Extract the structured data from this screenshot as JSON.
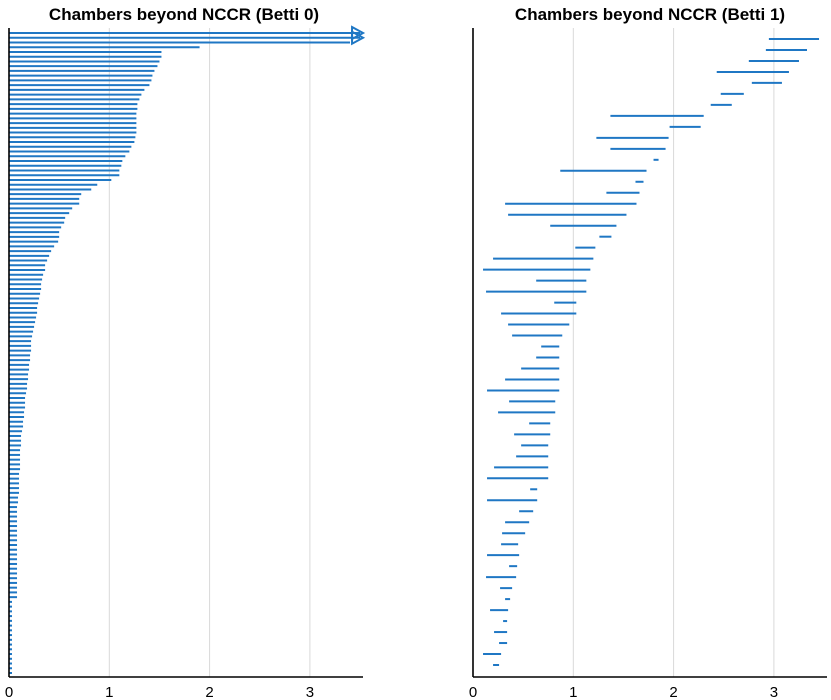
{
  "chart_data": [
    {
      "type": "barcode",
      "title": "Chambers beyond NCCR (Betti 0)",
      "xlim": [
        0,
        3.5
      ],
      "xticks": [
        0,
        1,
        2,
        3
      ],
      "grid": "vertical",
      "color": "#1f77c4",
      "infinite_arrows": 2,
      "intervals": [
        [
          0,
          3.5
        ],
        [
          0,
          3.5
        ],
        [
          0,
          3.4
        ],
        [
          0,
          1.9
        ],
        [
          0,
          1.52
        ],
        [
          0,
          1.52
        ],
        [
          0,
          1.5
        ],
        [
          0,
          1.48
        ],
        [
          0,
          1.45
        ],
        [
          0,
          1.43
        ],
        [
          0,
          1.42
        ],
        [
          0,
          1.4
        ],
        [
          0,
          1.35
        ],
        [
          0,
          1.32
        ],
        [
          0,
          1.3
        ],
        [
          0,
          1.28
        ],
        [
          0,
          1.28
        ],
        [
          0,
          1.27
        ],
        [
          0,
          1.27
        ],
        [
          0,
          1.27
        ],
        [
          0,
          1.27
        ],
        [
          0,
          1.27
        ],
        [
          0,
          1.26
        ],
        [
          0,
          1.25
        ],
        [
          0,
          1.22
        ],
        [
          0,
          1.2
        ],
        [
          0,
          1.16
        ],
        [
          0,
          1.13
        ],
        [
          0,
          1.12
        ],
        [
          0,
          1.1
        ],
        [
          0,
          1.1
        ],
        [
          0,
          1.02
        ],
        [
          0,
          0.88
        ],
        [
          0,
          0.82
        ],
        [
          0,
          0.72
        ],
        [
          0,
          0.7
        ],
        [
          0,
          0.7
        ],
        [
          0,
          0.63
        ],
        [
          0,
          0.6
        ],
        [
          0,
          0.56
        ],
        [
          0,
          0.55
        ],
        [
          0,
          0.52
        ],
        [
          0,
          0.5
        ],
        [
          0,
          0.5
        ],
        [
          0,
          0.49
        ],
        [
          0,
          0.45
        ],
        [
          0,
          0.42
        ],
        [
          0,
          0.4
        ],
        [
          0,
          0.38
        ],
        [
          0,
          0.36
        ],
        [
          0,
          0.36
        ],
        [
          0,
          0.34
        ],
        [
          0,
          0.33
        ],
        [
          0,
          0.32
        ],
        [
          0,
          0.32
        ],
        [
          0,
          0.31
        ],
        [
          0,
          0.3
        ],
        [
          0,
          0.29
        ],
        [
          0,
          0.28
        ],
        [
          0,
          0.28
        ],
        [
          0,
          0.27
        ],
        [
          0,
          0.26
        ],
        [
          0,
          0.25
        ],
        [
          0,
          0.24
        ],
        [
          0,
          0.23
        ],
        [
          0,
          0.22
        ],
        [
          0,
          0.22
        ],
        [
          0,
          0.22
        ],
        [
          0,
          0.21
        ],
        [
          0,
          0.21
        ],
        [
          0,
          0.2
        ],
        [
          0,
          0.2
        ],
        [
          0,
          0.19
        ],
        [
          0,
          0.19
        ],
        [
          0,
          0.18
        ],
        [
          0,
          0.18
        ],
        [
          0,
          0.17
        ],
        [
          0,
          0.16
        ],
        [
          0,
          0.16
        ],
        [
          0,
          0.16
        ],
        [
          0,
          0.15
        ],
        [
          0,
          0.15
        ],
        [
          0,
          0.14
        ],
        [
          0,
          0.14
        ],
        [
          0,
          0.13
        ],
        [
          0,
          0.12
        ],
        [
          0,
          0.12
        ],
        [
          0,
          0.12
        ],
        [
          0,
          0.11
        ],
        [
          0,
          0.11
        ],
        [
          0,
          0.11
        ],
        [
          0,
          0.11
        ],
        [
          0,
          0.11
        ],
        [
          0,
          0.1
        ],
        [
          0,
          0.1
        ],
        [
          0,
          0.1
        ],
        [
          0,
          0.1
        ],
        [
          0,
          0.1
        ],
        [
          0,
          0.09
        ],
        [
          0,
          0.09
        ],
        [
          0,
          0.08
        ],
        [
          0,
          0.08
        ],
        [
          0,
          0.08
        ],
        [
          0,
          0.08
        ],
        [
          0,
          0.08
        ],
        [
          0,
          0.08
        ],
        [
          0,
          0.08
        ],
        [
          0,
          0.08
        ],
        [
          0,
          0.08
        ],
        [
          0,
          0.08
        ],
        [
          0,
          0.08
        ],
        [
          0,
          0.08
        ],
        [
          0,
          0.08
        ],
        [
          0,
          0.08
        ],
        [
          0,
          0.08
        ],
        [
          0,
          0.08
        ],
        [
          0,
          0.08
        ],
        [
          0,
          0.08
        ],
        [
          0,
          0.08
        ],
        [
          0,
          0.08
        ],
        [
          0,
          0.03
        ],
        [
          0,
          0.03
        ],
        [
          0,
          0.03
        ],
        [
          0,
          0.03
        ],
        [
          0,
          0.03
        ],
        [
          0,
          0.03
        ],
        [
          0,
          0.03
        ],
        [
          0,
          0.03
        ],
        [
          0,
          0.03
        ],
        [
          0,
          0.03
        ],
        [
          0,
          0.03
        ],
        [
          0,
          0.03
        ],
        [
          0,
          0.03
        ],
        [
          0,
          0.03
        ],
        [
          0,
          0.03
        ],
        [
          0,
          0.03
        ]
      ]
    },
    {
      "type": "barcode",
      "title": "Chambers beyond NCCR (Betti 1)",
      "xlim": [
        0,
        3.5
      ],
      "xticks": [
        0,
        1,
        2,
        3
      ],
      "grid": "vertical",
      "color": "#1f77c4",
      "intervals": [
        [
          2.95,
          3.45
        ],
        [
          2.92,
          3.33
        ],
        [
          2.75,
          3.25
        ],
        [
          2.43,
          3.15
        ],
        [
          2.78,
          3.08
        ],
        [
          2.47,
          2.7
        ],
        [
          2.37,
          2.58
        ],
        [
          1.37,
          2.3
        ],
        [
          1.96,
          2.27
        ],
        [
          1.23,
          1.95
        ],
        [
          1.37,
          1.92
        ],
        [
          1.8,
          1.85
        ],
        [
          0.87,
          1.73
        ],
        [
          1.62,
          1.7
        ],
        [
          1.33,
          1.66
        ],
        [
          0.32,
          1.63
        ],
        [
          0.35,
          1.53
        ],
        [
          0.77,
          1.43
        ],
        [
          1.26,
          1.38
        ],
        [
          1.02,
          1.22
        ],
        [
          0.2,
          1.2
        ],
        [
          0.1,
          1.17
        ],
        [
          0.63,
          1.13
        ],
        [
          0.13,
          1.13
        ],
        [
          0.81,
          1.03
        ],
        [
          0.28,
          1.03
        ],
        [
          0.35,
          0.96
        ],
        [
          0.39,
          0.89
        ],
        [
          0.68,
          0.86
        ],
        [
          0.63,
          0.86
        ],
        [
          0.48,
          0.86
        ],
        [
          0.32,
          0.86
        ],
        [
          0.14,
          0.86
        ],
        [
          0.36,
          0.82
        ],
        [
          0.25,
          0.82
        ],
        [
          0.56,
          0.77
        ],
        [
          0.41,
          0.77
        ],
        [
          0.48,
          0.75
        ],
        [
          0.43,
          0.75
        ],
        [
          0.21,
          0.75
        ],
        [
          0.14,
          0.75
        ],
        [
          0.57,
          0.64
        ],
        [
          0.14,
          0.64
        ],
        [
          0.46,
          0.6
        ],
        [
          0.32,
          0.56
        ],
        [
          0.29,
          0.52
        ],
        [
          0.28,
          0.45
        ],
        [
          0.14,
          0.46
        ],
        [
          0.36,
          0.44
        ],
        [
          0.13,
          0.43
        ],
        [
          0.27,
          0.39
        ],
        [
          0.32,
          0.37
        ],
        [
          0.17,
          0.35
        ],
        [
          0.3,
          0.34
        ],
        [
          0.21,
          0.34
        ],
        [
          0.26,
          0.34
        ],
        [
          0.1,
          0.28
        ],
        [
          0.2,
          0.26
        ]
      ]
    }
  ]
}
